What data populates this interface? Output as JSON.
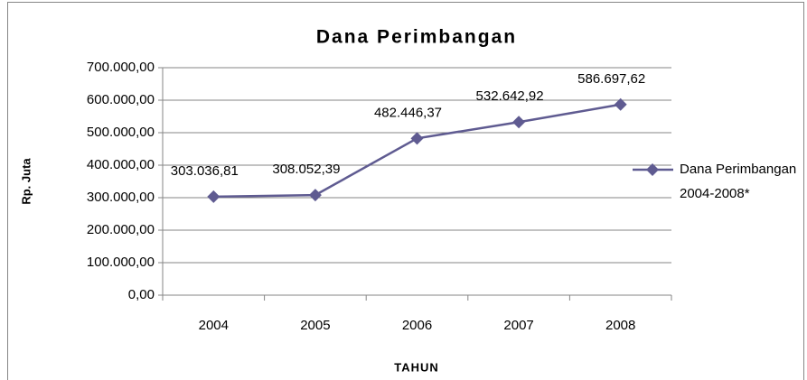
{
  "chart_data": {
    "type": "line",
    "title": "Dana Perimbangan",
    "x_label": "TAHUN",
    "y_label": "Rp. Juta",
    "categories": [
      "2004",
      "2005",
      "2006",
      "2007",
      "2008"
    ],
    "series": [
      {
        "name": "Dana Perimbangan 2004-2008*",
        "color": "#5f5b91",
        "values": [
          303036.81,
          308052.39,
          482446.37,
          532642.92,
          586697.62
        ],
        "value_labels": [
          "303.036,81",
          "308.052,39",
          "482.446,37",
          "532.642,92",
          "586.697,62"
        ]
      }
    ],
    "ylim": [
      0,
      700000
    ],
    "yticks": [
      {
        "value": 0,
        "label": "0,00"
      },
      {
        "value": 100000,
        "label": "100.000,00"
      },
      {
        "value": 200000,
        "label": "200.000,00"
      },
      {
        "value": 300000,
        "label": "300.000,00"
      },
      {
        "value": 400000,
        "label": "400.000,00"
      },
      {
        "value": 500000,
        "label": "500.000,00"
      },
      {
        "value": 600000,
        "label": "600.000,00"
      },
      {
        "value": 700000,
        "label": "700.000,00"
      }
    ],
    "grid": true,
    "legend": "right"
  }
}
